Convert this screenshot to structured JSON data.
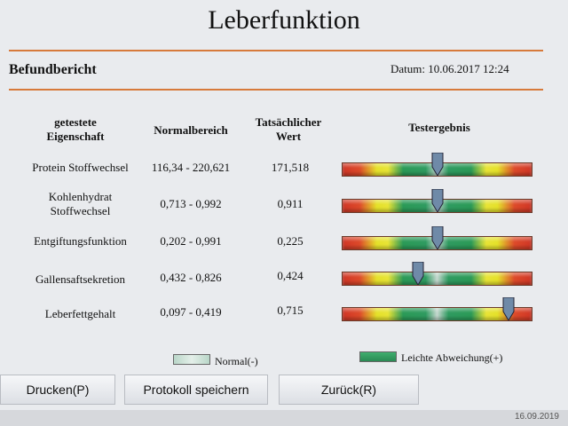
{
  "window": {
    "title": "Leberfunktion"
  },
  "report": {
    "section_label": "Befundbericht",
    "date_text": "Datum: 10.06.2017 12:24"
  },
  "table": {
    "headers": {
      "property_line1": "getestete",
      "property_line2": "Eigenschaft",
      "normal_range": "Normalbereich",
      "actual_line1": "Tatsächlicher",
      "actual_line2": "Wert",
      "result": "Testergebnis"
    },
    "rows": [
      {
        "property_line1": "Protein Stoffwechsel",
        "property_line2": "",
        "normal_range": "116,34 - 220,621",
        "actual": "171,518",
        "marker_level": 0.5
      },
      {
        "property_line1": "Kohlenhydrat",
        "property_line2": "Stoffwechsel",
        "normal_range": "0,713 - 0,992",
        "actual": "0,911",
        "marker_level": 0.5
      },
      {
        "property_line1": "Entgiftungsfunktion",
        "property_line2": "",
        "normal_range": "0,202 - 0,991",
        "actual": "0,225",
        "marker_level": 0.5
      },
      {
        "property_line1": "Gallensaftsekretion",
        "property_line2": "",
        "normal_range": "0,432 - 0,826",
        "actual": "0,424",
        "marker_level": 0.4
      },
      {
        "property_line1": "Leberfettgehalt",
        "property_line2": "",
        "normal_range": "0,097 - 0,419",
        "actual": "0,715",
        "marker_level": 0.88
      }
    ]
  },
  "legend": {
    "normal_label": "Normal(-)",
    "slight_label": "Leichte Abweichung(+)"
  },
  "buttons": {
    "print_label": "Drucken(P)",
    "save_label": "Protokoll speichern",
    "back_label": "Zurück(R)"
  },
  "status": {
    "date": "16.09.2019"
  },
  "colors": {
    "accent_rule": "#d77a3b",
    "marker_fill": "#6f8aa8"
  }
}
